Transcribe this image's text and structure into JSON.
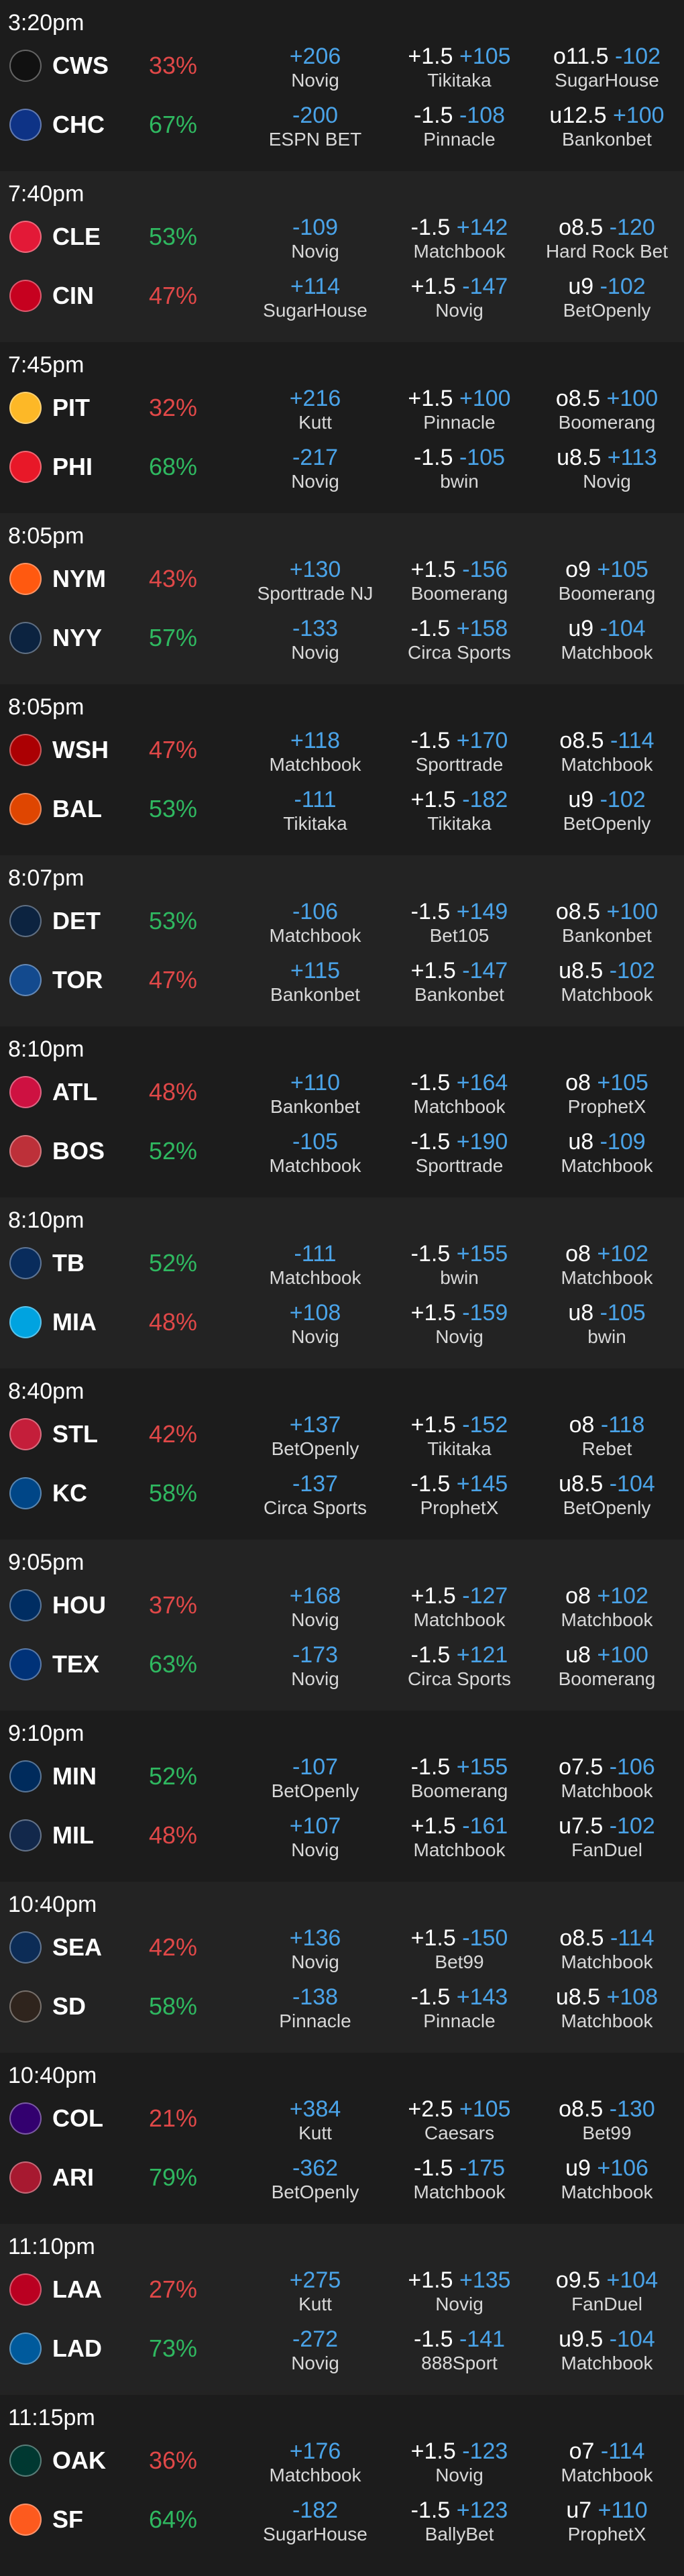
{
  "colors": {
    "win_pct": "#2fb860",
    "lose_pct": "#e04848",
    "price": "#4aa3e8"
  },
  "games": [
    {
      "time": "3:20pm",
      "away": {
        "abbr": "CWS",
        "logo_icon": "white-sox-logo-icon",
        "logo_color": "#111111",
        "pct": "33%",
        "pct_win": false,
        "ml_price": "+206",
        "ml_book": "Novig",
        "rl_label": "+1.5",
        "rl_price": "+105",
        "rl_book": "Tikitaka",
        "tot_label": "o11.5",
        "tot_price": "-102",
        "tot_book": "SugarHouse"
      },
      "home": {
        "abbr": "CHC",
        "logo_icon": "cubs-logo-icon",
        "logo_color": "#0e3386",
        "pct": "67%",
        "pct_win": true,
        "ml_price": "-200",
        "ml_book": "ESPN BET",
        "rl_label": "-1.5",
        "rl_price": "-108",
        "rl_book": "Pinnacle",
        "tot_label": "u12.5",
        "tot_price": "+100",
        "tot_book": "Bankonbet"
      }
    },
    {
      "time": "7:40pm",
      "away": {
        "abbr": "CLE",
        "logo_icon": "guardians-logo-icon",
        "logo_color": "#e31937",
        "pct": "53%",
        "pct_win": true,
        "ml_price": "-109",
        "ml_book": "Novig",
        "rl_label": "-1.5",
        "rl_price": "+142",
        "rl_book": "Matchbook",
        "tot_label": "o8.5",
        "tot_price": "-120",
        "tot_book": "Hard Rock Bet"
      },
      "home": {
        "abbr": "CIN",
        "logo_icon": "reds-logo-icon",
        "logo_color": "#c6011f",
        "pct": "47%",
        "pct_win": false,
        "ml_price": "+114",
        "ml_book": "SugarHouse",
        "rl_label": "+1.5",
        "rl_price": "-147",
        "rl_book": "Novig",
        "tot_label": "u9",
        "tot_price": "-102",
        "tot_book": "BetOpenly"
      }
    },
    {
      "time": "7:45pm",
      "away": {
        "abbr": "PIT",
        "logo_icon": "pirates-logo-icon",
        "logo_color": "#fdb827",
        "pct": "32%",
        "pct_win": false,
        "ml_price": "+216",
        "ml_book": "Kutt",
        "rl_label": "+1.5",
        "rl_price": "+100",
        "rl_book": "Pinnacle",
        "tot_label": "o8.5",
        "tot_price": "+100",
        "tot_book": "Boomerang"
      },
      "home": {
        "abbr": "PHI",
        "logo_icon": "phillies-logo-icon",
        "logo_color": "#e81828",
        "pct": "68%",
        "pct_win": true,
        "ml_price": "-217",
        "ml_book": "Novig",
        "rl_label": "-1.5",
        "rl_price": "-105",
        "rl_book": "bwin",
        "tot_label": "u8.5",
        "tot_price": "+113",
        "tot_book": "Novig"
      }
    },
    {
      "time": "8:05pm",
      "away": {
        "abbr": "NYM",
        "logo_icon": "mets-logo-icon",
        "logo_color": "#ff5910",
        "pct": "43%",
        "pct_win": false,
        "ml_price": "+130",
        "ml_book": "Sporttrade NJ",
        "rl_label": "+1.5",
        "rl_price": "-156",
        "rl_book": "Boomerang",
        "tot_label": "o9",
        "tot_price": "+105",
        "tot_book": "Boomerang"
      },
      "home": {
        "abbr": "NYY",
        "logo_icon": "yankees-logo-icon",
        "logo_color": "#0c2340",
        "pct": "57%",
        "pct_win": true,
        "ml_price": "-133",
        "ml_book": "Novig",
        "rl_label": "-1.5",
        "rl_price": "+158",
        "rl_book": "Circa Sports",
        "tot_label": "u9",
        "tot_price": "-104",
        "tot_book": "Matchbook"
      }
    },
    {
      "time": "8:05pm",
      "away": {
        "abbr": "WSH",
        "logo_icon": "nationals-logo-icon",
        "logo_color": "#ab0003",
        "pct": "47%",
        "pct_win": false,
        "ml_price": "+118",
        "ml_book": "Matchbook",
        "rl_label": "-1.5",
        "rl_price": "+170",
        "rl_book": "Sporttrade",
        "tot_label": "o8.5",
        "tot_price": "-114",
        "tot_book": "Matchbook"
      },
      "home": {
        "abbr": "BAL",
        "logo_icon": "orioles-logo-icon",
        "logo_color": "#df4601",
        "pct": "53%",
        "pct_win": true,
        "ml_price": "-111",
        "ml_book": "Tikitaka",
        "rl_label": "+1.5",
        "rl_price": "-182",
        "rl_book": "Tikitaka",
        "tot_label": "u9",
        "tot_price": "-102",
        "tot_book": "BetOpenly"
      }
    },
    {
      "time": "8:07pm",
      "away": {
        "abbr": "DET",
        "logo_icon": "tigers-logo-icon",
        "logo_color": "#0c2340",
        "pct": "53%",
        "pct_win": true,
        "ml_price": "-106",
        "ml_book": "Matchbook",
        "rl_label": "-1.5",
        "rl_price": "+149",
        "rl_book": "Bet105",
        "tot_label": "o8.5",
        "tot_price": "+100",
        "tot_book": "Bankonbet"
      },
      "home": {
        "abbr": "TOR",
        "logo_icon": "blue-jays-logo-icon",
        "logo_color": "#134a8e",
        "pct": "47%",
        "pct_win": false,
        "ml_price": "+115",
        "ml_book": "Bankonbet",
        "rl_label": "+1.5",
        "rl_price": "-147",
        "rl_book": "Bankonbet",
        "tot_label": "u8.5",
        "tot_price": "-102",
        "tot_book": "Matchbook"
      }
    },
    {
      "time": "8:10pm",
      "away": {
        "abbr": "ATL",
        "logo_icon": "braves-logo-icon",
        "logo_color": "#ce1141",
        "pct": "48%",
        "pct_win": false,
        "ml_price": "+110",
        "ml_book": "Bankonbet",
        "rl_label": "-1.5",
        "rl_price": "+164",
        "rl_book": "Matchbook",
        "tot_label": "o8",
        "tot_price": "+105",
        "tot_book": "ProphetX"
      },
      "home": {
        "abbr": "BOS",
        "logo_icon": "red-sox-logo-icon",
        "logo_color": "#bd3039",
        "pct": "52%",
        "pct_win": true,
        "ml_price": "-105",
        "ml_book": "Matchbook",
        "rl_label": "-1.5",
        "rl_price": "+190",
        "rl_book": "Sporttrade",
        "tot_label": "u8",
        "tot_price": "-109",
        "tot_book": "Matchbook"
      }
    },
    {
      "time": "8:10pm",
      "away": {
        "abbr": "TB",
        "logo_icon": "rays-logo-icon",
        "logo_color": "#092c5c",
        "pct": "52%",
        "pct_win": true,
        "ml_price": "-111",
        "ml_book": "Matchbook",
        "rl_label": "-1.5",
        "rl_price": "+155",
        "rl_book": "bwin",
        "tot_label": "o8",
        "tot_price": "+102",
        "tot_book": "Matchbook"
      },
      "home": {
        "abbr": "MIA",
        "logo_icon": "marlins-logo-icon",
        "logo_color": "#00a3e0",
        "pct": "48%",
        "pct_win": false,
        "ml_price": "+108",
        "ml_book": "Novig",
        "rl_label": "+1.5",
        "rl_price": "-159",
        "rl_book": "Novig",
        "tot_label": "u8",
        "tot_price": "-105",
        "tot_book": "bwin"
      }
    },
    {
      "time": "8:40pm",
      "away": {
        "abbr": "STL",
        "logo_icon": "cardinals-logo-icon",
        "logo_color": "#c41e3a",
        "pct": "42%",
        "pct_win": false,
        "ml_price": "+137",
        "ml_book": "BetOpenly",
        "rl_label": "+1.5",
        "rl_price": "-152",
        "rl_book": "Tikitaka",
        "tot_label": "o8",
        "tot_price": "-118",
        "tot_book": "Rebet"
      },
      "home": {
        "abbr": "KC",
        "logo_icon": "royals-logo-icon",
        "logo_color": "#004687",
        "pct": "58%",
        "pct_win": true,
        "ml_price": "-137",
        "ml_book": "Circa Sports",
        "rl_label": "-1.5",
        "rl_price": "+145",
        "rl_book": "ProphetX",
        "tot_label": "u8.5",
        "tot_price": "-104",
        "tot_book": "BetOpenly"
      }
    },
    {
      "time": "9:05pm",
      "away": {
        "abbr": "HOU",
        "logo_icon": "astros-logo-icon",
        "logo_color": "#002d62",
        "pct": "37%",
        "pct_win": false,
        "ml_price": "+168",
        "ml_book": "Novig",
        "rl_label": "+1.5",
        "rl_price": "-127",
        "rl_book": "Matchbook",
        "tot_label": "o8",
        "tot_price": "+102",
        "tot_book": "Matchbook"
      },
      "home": {
        "abbr": "TEX",
        "logo_icon": "rangers-logo-icon",
        "logo_color": "#003278",
        "pct": "63%",
        "pct_win": true,
        "ml_price": "-173",
        "ml_book": "Novig",
        "rl_label": "-1.5",
        "rl_price": "+121",
        "rl_book": "Circa Sports",
        "tot_label": "u8",
        "tot_price": "+100",
        "tot_book": "Boomerang"
      }
    },
    {
      "time": "9:10pm",
      "away": {
        "abbr": "MIN",
        "logo_icon": "twins-logo-icon",
        "logo_color": "#002b5c",
        "pct": "52%",
        "pct_win": true,
        "ml_price": "-107",
        "ml_book": "BetOpenly",
        "rl_label": "-1.5",
        "rl_price": "+155",
        "rl_book": "Boomerang",
        "tot_label": "o7.5",
        "tot_price": "-106",
        "tot_book": "Matchbook"
      },
      "home": {
        "abbr": "MIL",
        "logo_icon": "brewers-logo-icon",
        "logo_color": "#12284b",
        "pct": "48%",
        "pct_win": false,
        "ml_price": "+107",
        "ml_book": "Novig",
        "rl_label": "+1.5",
        "rl_price": "-161",
        "rl_book": "Matchbook",
        "tot_label": "u7.5",
        "tot_price": "-102",
        "tot_book": "FanDuel"
      }
    },
    {
      "time": "10:40pm",
      "away": {
        "abbr": "SEA",
        "logo_icon": "mariners-logo-icon",
        "logo_color": "#0c2c56",
        "pct": "42%",
        "pct_win": false,
        "ml_price": "+136",
        "ml_book": "Novig",
        "rl_label": "+1.5",
        "rl_price": "-150",
        "rl_book": "Bet99",
        "tot_label": "o8.5",
        "tot_price": "-114",
        "tot_book": "Matchbook"
      },
      "home": {
        "abbr": "SD",
        "logo_icon": "padres-logo-icon",
        "logo_color": "#2f241d",
        "pct": "58%",
        "pct_win": true,
        "ml_price": "-138",
        "ml_book": "Pinnacle",
        "rl_label": "-1.5",
        "rl_price": "+143",
        "rl_book": "Pinnacle",
        "tot_label": "u8.5",
        "tot_price": "+108",
        "tot_book": "Matchbook"
      }
    },
    {
      "time": "10:40pm",
      "away": {
        "abbr": "COL",
        "logo_icon": "rockies-logo-icon",
        "logo_color": "#33006f",
        "pct": "21%",
        "pct_win": false,
        "ml_price": "+384",
        "ml_book": "Kutt",
        "rl_label": "+2.5",
        "rl_price": "+105",
        "rl_book": "Caesars",
        "tot_label": "o8.5",
        "tot_price": "-130",
        "tot_book": "Bet99"
      },
      "home": {
        "abbr": "ARI",
        "logo_icon": "diamondbacks-logo-icon",
        "logo_color": "#a71930",
        "pct": "79%",
        "pct_win": true,
        "ml_price": "-362",
        "ml_book": "BetOpenly",
        "rl_label": "-1.5",
        "rl_price": "-175",
        "rl_book": "Matchbook",
        "tot_label": "u9",
        "tot_price": "+106",
        "tot_book": "Matchbook"
      }
    },
    {
      "time": "11:10pm",
      "away": {
        "abbr": "LAA",
        "logo_icon": "angels-logo-icon",
        "logo_color": "#ba0021",
        "pct": "27%",
        "pct_win": false,
        "ml_price": "+275",
        "ml_book": "Kutt",
        "rl_label": "+1.5",
        "rl_price": "+135",
        "rl_book": "Novig",
        "tot_label": "o9.5",
        "tot_price": "+104",
        "tot_book": "FanDuel"
      },
      "home": {
        "abbr": "LAD",
        "logo_icon": "dodgers-logo-icon",
        "logo_color": "#005a9c",
        "pct": "73%",
        "pct_win": true,
        "ml_price": "-272",
        "ml_book": "Novig",
        "rl_label": "-1.5",
        "rl_price": "-141",
        "rl_book": "888Sport",
        "tot_label": "u9.5",
        "tot_price": "-104",
        "tot_book": "Matchbook"
      }
    },
    {
      "time": "11:15pm",
      "away": {
        "abbr": "OAK",
        "logo_icon": "athletics-logo-icon",
        "logo_color": "#003831",
        "pct": "36%",
        "pct_win": false,
        "ml_price": "+176",
        "ml_book": "Matchbook",
        "rl_label": "+1.5",
        "rl_price": "-123",
        "rl_book": "Novig",
        "tot_label": "o7",
        "tot_price": "-114",
        "tot_book": "Matchbook"
      },
      "home": {
        "abbr": "SF",
        "logo_icon": "giants-logo-icon",
        "logo_color": "#fd5a1e",
        "pct": "64%",
        "pct_win": true,
        "ml_price": "-182",
        "ml_book": "SugarHouse",
        "rl_label": "-1.5",
        "rl_price": "+123",
        "rl_book": "BallyBet",
        "tot_label": "u7",
        "tot_price": "+110",
        "tot_book": "ProphetX"
      }
    }
  ]
}
